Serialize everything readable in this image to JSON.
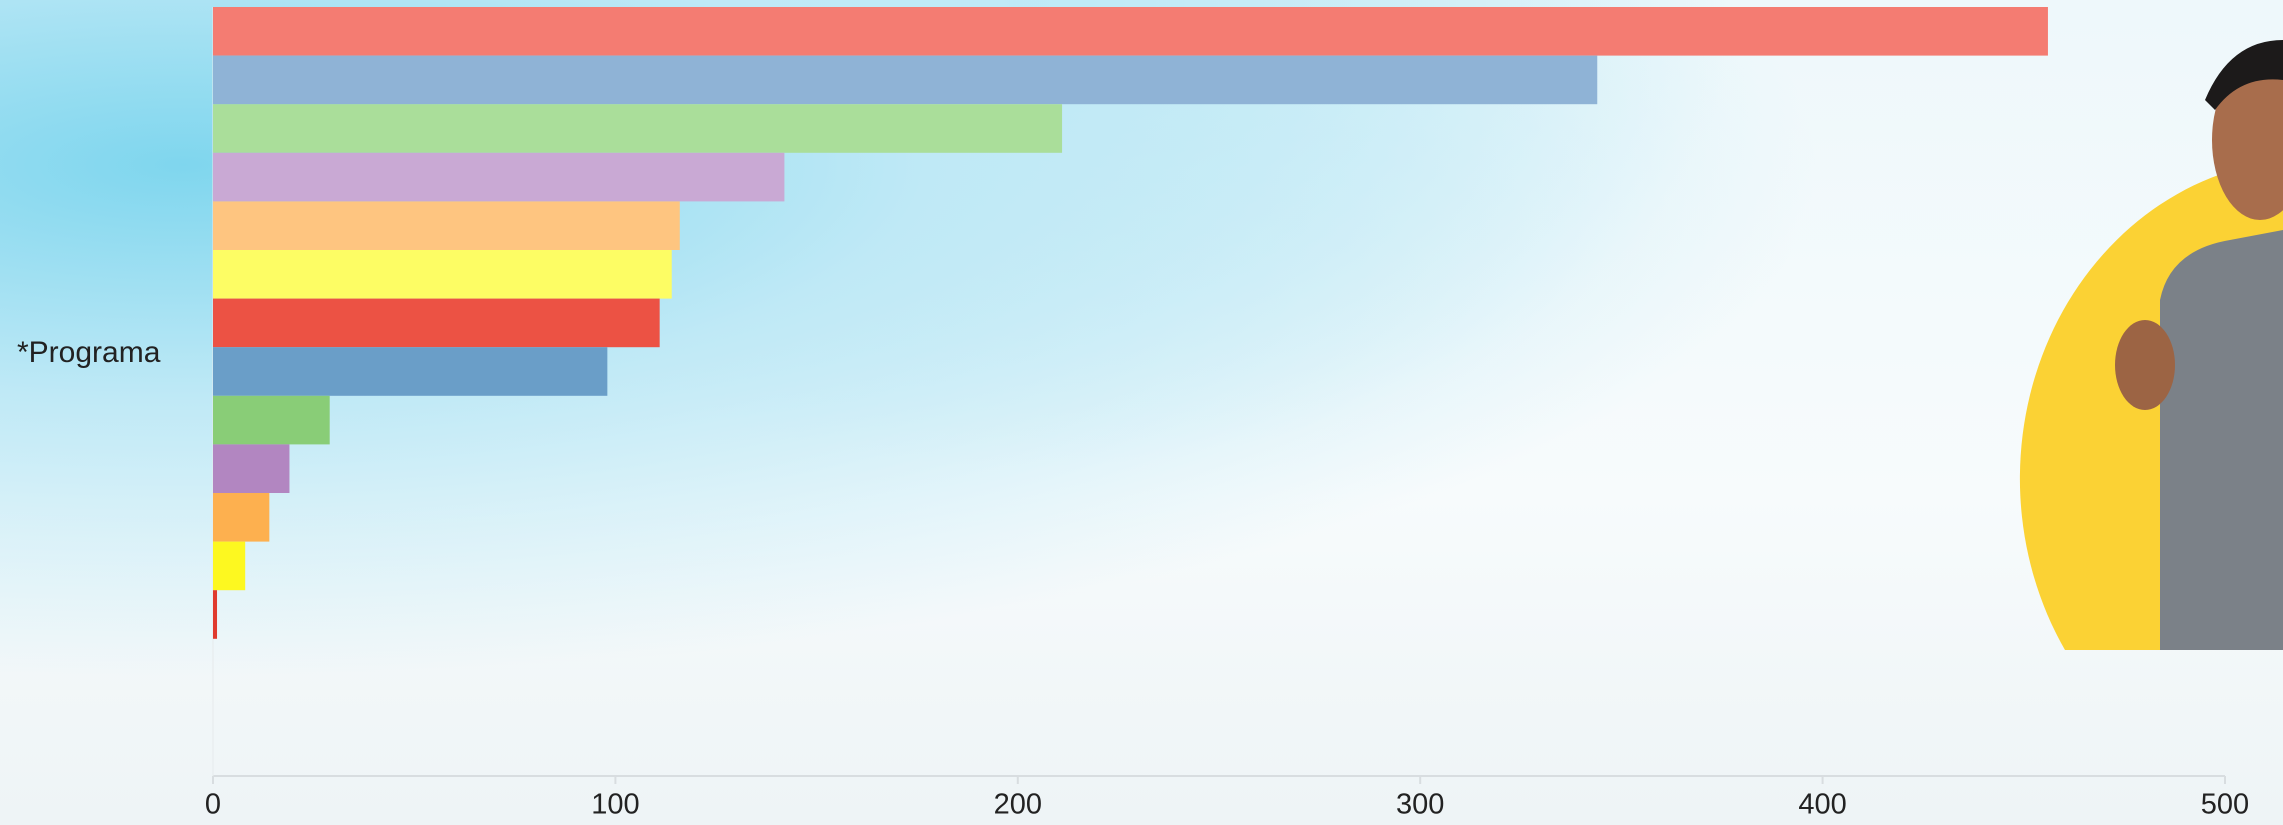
{
  "chart_data": {
    "type": "bar",
    "orientation": "horizontal",
    "categories": [
      "*Programa"
    ],
    "series": [
      {
        "color": "#f47c72",
        "values": [
          456
        ]
      },
      {
        "color": "#8fb3d6",
        "values": [
          344
        ]
      },
      {
        "color": "#aade9a",
        "values": [
          211
        ]
      },
      {
        "color": "#c9a9d4",
        "values": [
          142
        ]
      },
      {
        "color": "#fec580",
        "values": [
          116
        ]
      },
      {
        "color": "#fdfd64",
        "values": [
          114
        ]
      },
      {
        "color": "#ec5244",
        "values": [
          111
        ]
      },
      {
        "color": "#6a9ec8",
        "values": [
          98
        ]
      },
      {
        "color": "#89cd77",
        "values": [
          29
        ]
      },
      {
        "color": "#b286c1",
        "values": [
          19
        ]
      },
      {
        "color": "#fdb04f",
        "values": [
          14
        ]
      },
      {
        "color": "#fdf820",
        "values": [
          8
        ]
      },
      {
        "color": "#e03a2e",
        "values": [
          1
        ]
      }
    ],
    "xlim": [
      0,
      500
    ],
    "xticks": [
      0,
      100,
      200,
      300,
      400,
      500
    ],
    "grid": false
  }
}
